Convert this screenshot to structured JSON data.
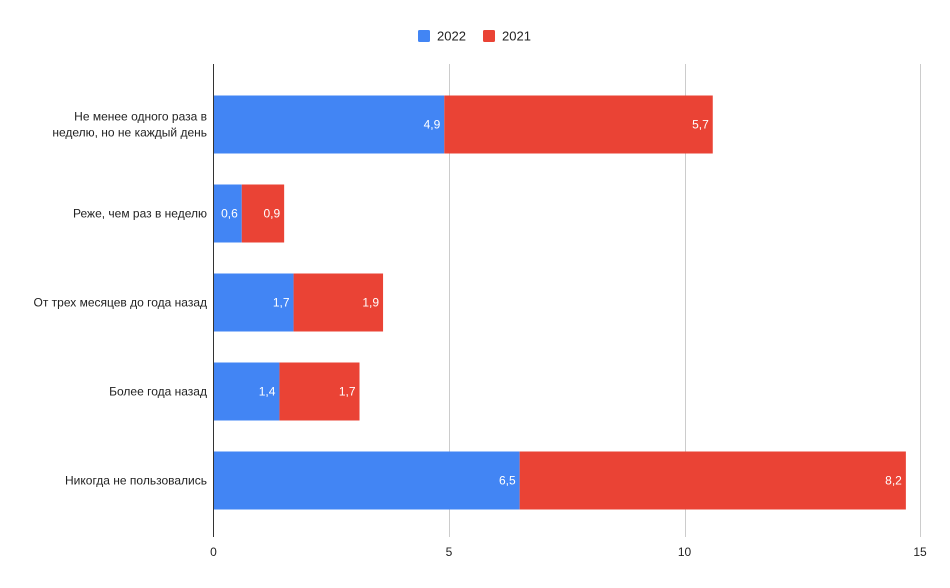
{
  "chart_data": {
    "type": "bar",
    "orientation": "horizontal",
    "stacked": true,
    "categories": [
      [
        "Не менее одного раза в",
        "неделю, но не каждый день"
      ],
      [
        "Реже, чем раз в неделю"
      ],
      [
        "От трех месяцев до года назад"
      ],
      [
        "Более года назад"
      ],
      [
        "Никогда не пользовались"
      ]
    ],
    "series": [
      {
        "name": "2022",
        "color": "#4285f4",
        "values": [
          4.9,
          0.6,
          1.7,
          1.4,
          6.5
        ],
        "labels": [
          "4,9",
          "0,6",
          "1,7",
          "1,4",
          "6,5"
        ]
      },
      {
        "name": "2021",
        "color": "#ea4335",
        "values": [
          5.7,
          0.9,
          1.9,
          1.7,
          8.2
        ],
        "labels": [
          "5,7",
          "0,9",
          "1,9",
          "1,7",
          "8,2"
        ]
      }
    ],
    "xlim": [
      0,
      15
    ],
    "x_ticks": [
      0,
      5,
      10,
      15
    ],
    "x_tick_labels": [
      "0",
      "5",
      "10",
      "15"
    ],
    "grid": "vertical",
    "legend_position": "top-center",
    "title": "",
    "xlabel": "",
    "ylabel": ""
  }
}
